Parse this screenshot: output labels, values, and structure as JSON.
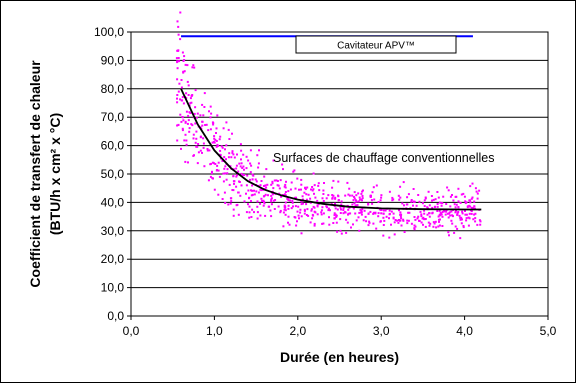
{
  "chart_data": {
    "type": "scatter",
    "xlabel": "Durée (en heures)",
    "ylabel_line1": "Coefficient de transfert de chaleur",
    "ylabel_line2": "(BTU/h x cm² x °C)",
    "xlim": [
      0,
      5
    ],
    "ylim": [
      0,
      100
    ],
    "x_ticks": [
      "0,0",
      "1,0",
      "2,0",
      "3,0",
      "4,0",
      "5,0"
    ],
    "y_ticks": [
      "0,0",
      "10,0",
      "20,0",
      "30,0",
      "40,0",
      "50,0",
      "60,0",
      "70,0",
      "80,0",
      "90,0",
      "100,0"
    ],
    "grid": "horizontal",
    "colors": {
      "scatter": "#ff00ff",
      "trend": "#000000",
      "cavitator": "#0000ff",
      "grid": "#000000"
    },
    "series": [
      {
        "name": "Cavitateur APV™",
        "kind": "line",
        "x": [
          0.6,
          4.1
        ],
        "y": [
          98.5,
          98.5
        ]
      },
      {
        "name": "Surfaces de chauffage conventionnelles",
        "kind": "scatter",
        "model": {
          "x_range": [
            0.55,
            4.2
          ],
          "asymptote": 37.5,
          "amplitude": 43,
          "decay": 2.0,
          "x0": 0.6,
          "spread": 4
        }
      },
      {
        "kind": "trend",
        "x": [
          0.6,
          0.8,
          1.0,
          1.2,
          1.4,
          1.6,
          1.8,
          2.0,
          2.3,
          2.6,
          3.0,
          3.5,
          4.0,
          4.2
        ],
        "y": [
          80.0,
          67.5,
          58.3,
          52.0,
          47.5,
          44.5,
          42.5,
          41.0,
          39.5,
          38.5,
          37.9,
          37.6,
          37.5,
          37.5
        ]
      }
    ]
  }
}
